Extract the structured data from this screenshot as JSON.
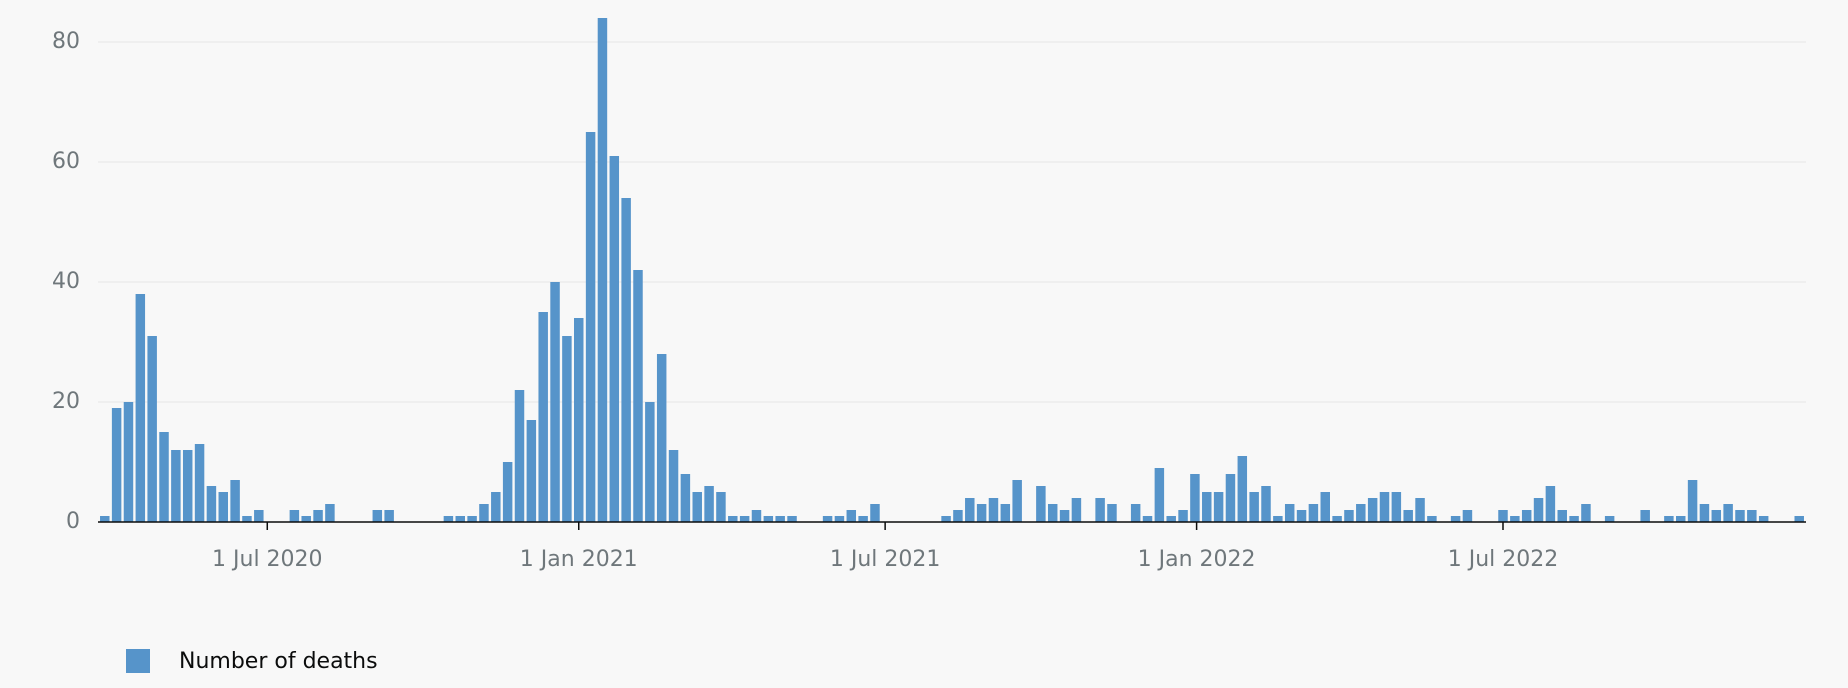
{
  "chart_data": {
    "type": "bar",
    "x": [
      "2020-03-27",
      "2020-04-03",
      "2020-04-10",
      "2020-04-17",
      "2020-04-24",
      "2020-05-01",
      "2020-05-08",
      "2020-05-15",
      "2020-05-22",
      "2020-05-29",
      "2020-06-05",
      "2020-06-12",
      "2020-06-19",
      "2020-06-26",
      "2020-07-03",
      "2020-07-10",
      "2020-07-17",
      "2020-07-24",
      "2020-07-31",
      "2020-08-07",
      "2020-08-14",
      "2020-08-21",
      "2020-08-28",
      "2020-09-04",
      "2020-09-11",
      "2020-09-18",
      "2020-09-25",
      "2020-10-02",
      "2020-10-09",
      "2020-10-16",
      "2020-10-23",
      "2020-10-30",
      "2020-11-06",
      "2020-11-13",
      "2020-11-20",
      "2020-11-27",
      "2020-12-04",
      "2020-12-11",
      "2020-12-18",
      "2020-12-25",
      "2021-01-01",
      "2021-01-08",
      "2021-01-15",
      "2021-01-22",
      "2021-01-29",
      "2021-02-05",
      "2021-02-12",
      "2021-02-19",
      "2021-02-26",
      "2021-03-05",
      "2021-03-12",
      "2021-03-19",
      "2021-03-26",
      "2021-04-02",
      "2021-04-09",
      "2021-04-16",
      "2021-04-23",
      "2021-04-30",
      "2021-05-07",
      "2021-05-14",
      "2021-05-21",
      "2021-05-28",
      "2021-06-04",
      "2021-06-11",
      "2021-06-18",
      "2021-06-25",
      "2021-07-02",
      "2021-07-09",
      "2021-07-16",
      "2021-07-23",
      "2021-07-30",
      "2021-08-06",
      "2021-08-13",
      "2021-08-20",
      "2021-08-27",
      "2021-09-03",
      "2021-09-10",
      "2021-09-17",
      "2021-09-24",
      "2021-10-01",
      "2021-10-08",
      "2021-10-15",
      "2021-10-22",
      "2021-10-29",
      "2021-11-05",
      "2021-11-12",
      "2021-11-19",
      "2021-11-26",
      "2021-12-03",
      "2021-12-10",
      "2021-12-17",
      "2021-12-24",
      "2021-12-31",
      "2022-01-07",
      "2022-01-14",
      "2022-01-21",
      "2022-01-28",
      "2022-02-04",
      "2022-02-11",
      "2022-02-18",
      "2022-02-25",
      "2022-03-04",
      "2022-03-11",
      "2022-03-18",
      "2022-03-25",
      "2022-04-01",
      "2022-04-08",
      "2022-04-15",
      "2022-04-22",
      "2022-04-29",
      "2022-05-06",
      "2022-05-13",
      "2022-05-20",
      "2022-05-27",
      "2022-06-03",
      "2022-06-10",
      "2022-06-17",
      "2022-06-24",
      "2022-07-01",
      "2022-07-08",
      "2022-07-15",
      "2022-07-22",
      "2022-07-29",
      "2022-08-05",
      "2022-08-12",
      "2022-08-19",
      "2022-08-26",
      "2022-09-02",
      "2022-09-09",
      "2022-09-16",
      "2022-09-23",
      "2022-09-30",
      "2022-10-07",
      "2022-10-14",
      "2022-10-21",
      "2022-10-28",
      "2022-11-04",
      "2022-11-11",
      "2022-11-18",
      "2022-11-25",
      "2022-12-02",
      "2022-12-09",
      "2022-12-16",
      "2022-12-23"
    ],
    "series": [
      {
        "name": "Number of deaths",
        "color": "#5694ca",
        "values": [
          1,
          19,
          20,
          38,
          31,
          15,
          12,
          12,
          13,
          6,
          5,
          7,
          1,
          2,
          0,
          0,
          2,
          1,
          2,
          3,
          0,
          0,
          0,
          2,
          2,
          0,
          0,
          0,
          0,
          1,
          1,
          1,
          3,
          5,
          10,
          22,
          17,
          35,
          40,
          31,
          34,
          65,
          84,
          61,
          54,
          42,
          20,
          28,
          12,
          8,
          5,
          6,
          5,
          1,
          1,
          2,
          1,
          1,
          1,
          0,
          0,
          1,
          1,
          2,
          1,
          3,
          0,
          0,
          0,
          0,
          0,
          1,
          2,
          4,
          3,
          4,
          3,
          7,
          0,
          6,
          3,
          2,
          4,
          0,
          4,
          3,
          0,
          3,
          1,
          9,
          1,
          2,
          8,
          5,
          5,
          8,
          11,
          5,
          6,
          1,
          3,
          2,
          3,
          5,
          1,
          2,
          3,
          4,
          5,
          5,
          2,
          4,
          1,
          0,
          1,
          2,
          0,
          0,
          2,
          1,
          2,
          4,
          6,
          2,
          1,
          3,
          0,
          1,
          0,
          0,
          2,
          0,
          1,
          1,
          7,
          3,
          2,
          3,
          2,
          2,
          1,
          0,
          0,
          1
        ]
      }
    ],
    "xlim": [
      "2020-03-23",
      "2022-12-27"
    ],
    "xticks": [
      {
        "value": "2020-07-01",
        "label": "1 Jul 2020"
      },
      {
        "value": "2021-01-01",
        "label": "1 Jan 2021"
      },
      {
        "value": "2021-07-01",
        "label": "1 Jul 2021"
      },
      {
        "value": "2022-01-01",
        "label": "1 Jan 2022"
      },
      {
        "value": "2022-07-01",
        "label": "1 Jul 2022"
      }
    ],
    "ylim": [
      0,
      85
    ],
    "yticks": [
      0,
      20,
      40,
      60,
      80
    ],
    "grid": true
  }
}
